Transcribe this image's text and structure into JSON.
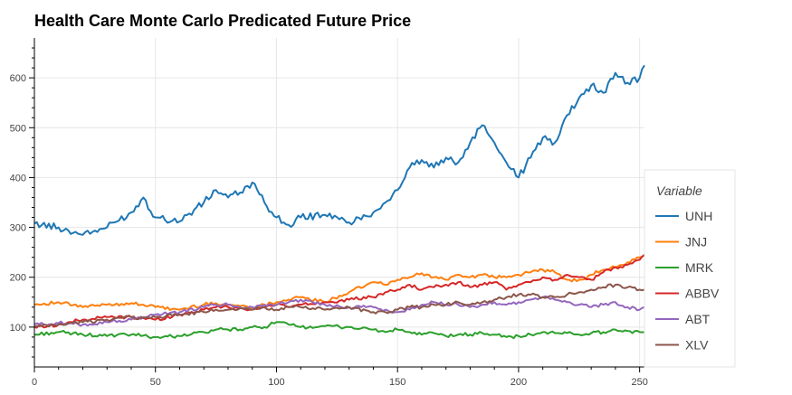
{
  "chart_data": {
    "type": "line",
    "title": "Health Care Monte Carlo Predicated Future Price",
    "xlabel": "",
    "ylabel": "",
    "xlim": [
      0,
      252
    ],
    "ylim": [
      20,
      680
    ],
    "x_ticks": [
      0,
      50,
      100,
      150,
      200,
      250
    ],
    "y_ticks": [
      100,
      200,
      300,
      400,
      500,
      600
    ],
    "grid": true,
    "legend": {
      "title": "Variable",
      "placement": "right"
    },
    "x": [
      0,
      10,
      20,
      30,
      40,
      45,
      50,
      60,
      70,
      75,
      80,
      85,
      90,
      95,
      100,
      105,
      110,
      120,
      130,
      140,
      145,
      150,
      155,
      160,
      165,
      170,
      175,
      180,
      185,
      190,
      195,
      200,
      205,
      210,
      215,
      220,
      225,
      230,
      235,
      240,
      245,
      250,
      252
    ],
    "series": [
      {
        "name": "UNH",
        "color": "#1f77b4",
        "values": [
          308,
          300,
          285,
          300,
          330,
          360,
          320,
          312,
          350,
          375,
          360,
          370,
          390,
          350,
          320,
          305,
          320,
          325,
          310,
          330,
          350,
          375,
          420,
          435,
          420,
          440,
          430,
          470,
          505,
          470,
          430,
          400,
          440,
          480,
          470,
          525,
          560,
          585,
          570,
          610,
          590,
          600,
          625
        ]
      },
      {
        "name": "JNJ",
        "color": "#ff7f0e",
        "values": [
          145,
          150,
          140,
          145,
          148,
          145,
          140,
          135,
          145,
          148,
          145,
          142,
          140,
          145,
          150,
          155,
          160,
          150,
          170,
          190,
          185,
          195,
          200,
          208,
          200,
          195,
          205,
          200,
          205,
          200,
          200,
          205,
          210,
          215,
          210,
          195,
          195,
          205,
          215,
          220,
          230,
          240,
          245
        ]
      },
      {
        "name": "MRK",
        "color": "#2ca02c",
        "values": [
          85,
          90,
          85,
          82,
          85,
          83,
          80,
          82,
          90,
          95,
          95,
          95,
          100,
          100,
          110,
          105,
          100,
          102,
          100,
          95,
          90,
          95,
          90,
          85,
          88,
          82,
          85,
          85,
          88,
          85,
          80,
          82,
          85,
          90,
          88,
          88,
          85,
          88,
          90,
          95,
          92,
          90,
          90
        ]
      },
      {
        "name": "ABBV",
        "color": "#d62728",
        "values": [
          100,
          105,
          115,
          120,
          120,
          118,
          115,
          125,
          135,
          140,
          140,
          138,
          135,
          140,
          145,
          140,
          145,
          150,
          155,
          160,
          170,
          175,
          185,
          175,
          180,
          185,
          190,
          180,
          185,
          190,
          175,
          185,
          190,
          200,
          195,
          205,
          200,
          195,
          210,
          220,
          225,
          235,
          245
        ]
      },
      {
        "name": "ABT",
        "color": "#9467bd",
        "values": [
          105,
          108,
          105,
          110,
          115,
          120,
          125,
          130,
          140,
          145,
          145,
          140,
          140,
          145,
          145,
          150,
          155,
          145,
          140,
          140,
          135,
          130,
          135,
          145,
          150,
          145,
          145,
          140,
          145,
          150,
          145,
          150,
          155,
          160,
          155,
          150,
          145,
          140,
          145,
          150,
          140,
          135,
          140
        ]
      },
      {
        "name": "XLV",
        "color": "#8c564b",
        "values": [
          100,
          105,
          110,
          115,
          120,
          118,
          120,
          125,
          130,
          135,
          135,
          138,
          135,
          140,
          135,
          140,
          140,
          135,
          140,
          130,
          130,
          135,
          140,
          140,
          145,
          145,
          150,
          145,
          150,
          155,
          160,
          165,
          165,
          160,
          160,
          165,
          170,
          175,
          180,
          185,
          180,
          175,
          175
        ]
      }
    ]
  }
}
